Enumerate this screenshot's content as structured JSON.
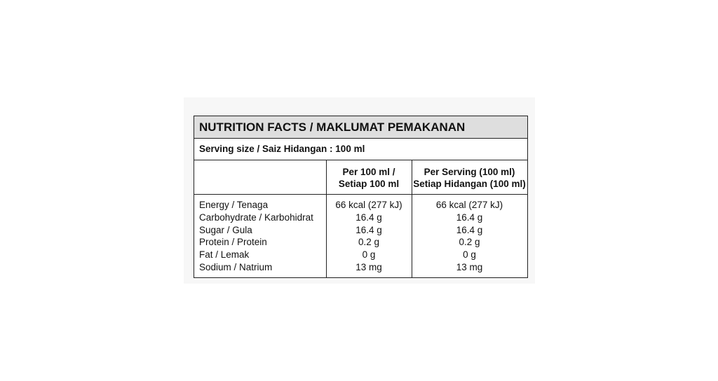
{
  "table": {
    "title": "NUTRITION FACTS / MAKLUMAT PEMAKANAN",
    "serving": "Serving size / Saiz Hidangan : 100 ml",
    "headers": [
      [
        "Per 100 ml /",
        "Setiap 100 ml"
      ],
      [
        "Per Serving (100 ml)",
        "Setiap Hidangan (100 ml)"
      ]
    ],
    "rows": [
      [
        "Energy / Tenaga",
        "66 kcal (277 kJ)",
        "66 kcal (277 kJ)"
      ],
      [
        "Carbohydrate / Karbohidrat",
        "16.4 g",
        "16.4 g"
      ],
      [
        "Sugar / Gula",
        "16.4 g",
        "16.4 g"
      ],
      [
        "Protein / Protein",
        "0.2 g",
        "0.2 g"
      ],
      [
        "Fat / Lemak",
        "0 g",
        "0 g"
      ],
      [
        "Sodium / Natrium",
        "13 mg",
        "13 mg"
      ]
    ]
  }
}
